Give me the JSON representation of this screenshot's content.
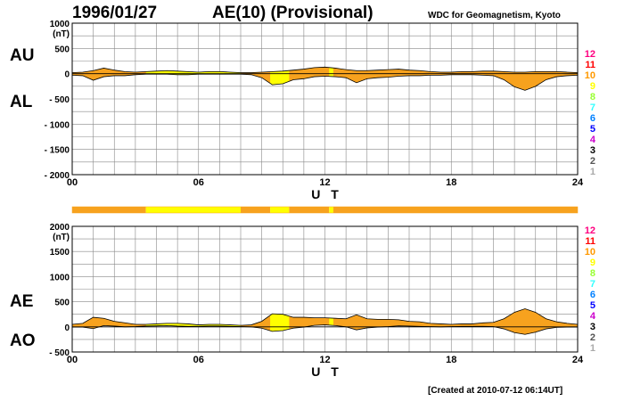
{
  "header": {
    "date": "1996/01/27",
    "title": "AE(10) (Provisional)",
    "source": "WDC for Geomagnetism, Kyoto"
  },
  "footer": {
    "created": "[Created at 2010-07-12 06:14UT]"
  },
  "colors": {
    "normal": "#f7a21e",
    "reduced": "#ffff00",
    "grid": "#888888",
    "line": "#000000"
  },
  "levels": {
    "labels": [
      "12",
      "11",
      "10",
      "9",
      "8",
      "7",
      "6",
      "5",
      "4",
      "3",
      "2",
      "1"
    ],
    "colors": [
      "#ff0080",
      "#ff0000",
      "#ff9900",
      "#ffff00",
      "#99ff33",
      "#33ffff",
      "#0080ff",
      "#0000ff",
      "#cc00cc",
      "#000000",
      "#555555",
      "#aaaaaa"
    ]
  },
  "chart_data": [
    {
      "type": "area",
      "panel": "AU/AL",
      "series_labels": [
        "AU",
        "AL"
      ],
      "ylabel": "(nT)",
      "xlabel": "U T",
      "xlim": [
        0,
        24
      ],
      "ylim": [
        -2000,
        1000
      ],
      "x_ticks": [
        "00",
        "06",
        "12",
        "18",
        "24"
      ],
      "y_ticks": [
        "1000",
        "500",
        "0",
        "- 500",
        "- 1000",
        "- 1500",
        "- 2000"
      ],
      "y_tick_values": [
        1000,
        500,
        0,
        -500,
        -1000,
        -1500,
        -2000
      ],
      "x": [
        0,
        0.5,
        1,
        1.5,
        2,
        2.5,
        3,
        3.5,
        4,
        4.5,
        5,
        5.5,
        6,
        6.5,
        7,
        7.5,
        8,
        8.5,
        9,
        9.5,
        10,
        10.5,
        11,
        11.5,
        12,
        12.5,
        13,
        13.5,
        14,
        14.5,
        15,
        15.5,
        16,
        16.5,
        17,
        17.5,
        18,
        18.5,
        19,
        19.5,
        20,
        20.5,
        21,
        21.5,
        22,
        22.5,
        23,
        23.5,
        24
      ],
      "au": [
        20,
        30,
        60,
        110,
        70,
        40,
        30,
        40,
        50,
        60,
        50,
        40,
        30,
        40,
        40,
        30,
        20,
        20,
        30,
        40,
        50,
        70,
        90,
        120,
        130,
        110,
        80,
        60,
        60,
        70,
        80,
        90,
        70,
        60,
        40,
        30,
        30,
        40,
        40,
        50,
        50,
        40,
        30,
        30,
        40,
        40,
        40,
        30,
        20
      ],
      "al": [
        -30,
        -40,
        -130,
        -60,
        -40,
        -40,
        -20,
        -10,
        -10,
        -10,
        -20,
        -20,
        -10,
        -10,
        -10,
        -10,
        -10,
        -20,
        -80,
        -220,
        -200,
        -120,
        -100,
        -60,
        -50,
        -60,
        -80,
        -180,
        -100,
        -80,
        -70,
        -50,
        -40,
        -40,
        -30,
        -30,
        -20,
        -20,
        -20,
        -30,
        -40,
        -120,
        -260,
        -330,
        -250,
        -120,
        -60,
        -40,
        -30
      ]
    },
    {
      "type": "area",
      "panel": "AE/AO",
      "series_labels": [
        "AE",
        "AO"
      ],
      "ylabel": "(nT)",
      "xlabel": "U T",
      "xlim": [
        0,
        24
      ],
      "ylim": [
        -500,
        2000
      ],
      "x_ticks": [
        "00",
        "06",
        "12",
        "18",
        "24"
      ],
      "y_ticks": [
        "2000",
        "1500",
        "1000",
        "500",
        "0",
        "- 500"
      ],
      "y_tick_values": [
        2000,
        1500,
        1000,
        500,
        0,
        -500
      ],
      "x": [
        0,
        0.5,
        1,
        1.5,
        2,
        2.5,
        3,
        3.5,
        4,
        4.5,
        5,
        5.5,
        6,
        6.5,
        7,
        7.5,
        8,
        8.5,
        9,
        9.5,
        10,
        10.5,
        11,
        11.5,
        12,
        12.5,
        13,
        13.5,
        14,
        14.5,
        15,
        15.5,
        16,
        16.5,
        17,
        17.5,
        18,
        18.5,
        19,
        19.5,
        20,
        20.5,
        21,
        21.5,
        22,
        22.5,
        23,
        23.5,
        24
      ],
      "ae": [
        50,
        70,
        190,
        170,
        110,
        80,
        50,
        50,
        60,
        70,
        70,
        60,
        40,
        50,
        50,
        40,
        30,
        40,
        110,
        260,
        250,
        190,
        190,
        180,
        180,
        170,
        160,
        240,
        160,
        150,
        150,
        140,
        110,
        100,
        70,
        60,
        50,
        60,
        60,
        80,
        90,
        160,
        290,
        360,
        290,
        160,
        100,
        70,
        50
      ],
      "ao": [
        -5,
        -5,
        -35,
        25,
        15,
        0,
        5,
        15,
        20,
        25,
        15,
        10,
        10,
        15,
        15,
        10,
        5,
        0,
        -25,
        -90,
        -75,
        -25,
        -5,
        30,
        40,
        25,
        0,
        -60,
        -20,
        -5,
        5,
        20,
        15,
        10,
        5,
        0,
        5,
        10,
        10,
        10,
        5,
        -40,
        -115,
        -150,
        -105,
        -40,
        -10,
        -5,
        -5
      ]
    }
  ],
  "quality_band": {
    "segments": [
      {
        "from": 0,
        "to": 3.5,
        "level": "normal"
      },
      {
        "from": 3.5,
        "to": 8,
        "level": "reduced"
      },
      {
        "from": 8,
        "to": 9.4,
        "level": "normal"
      },
      {
        "from": 9.4,
        "to": 10.3,
        "level": "reduced"
      },
      {
        "from": 10.3,
        "to": 12.2,
        "level": "normal"
      },
      {
        "from": 12.2,
        "to": 12.4,
        "level": "reduced"
      },
      {
        "from": 12.4,
        "to": 24,
        "level": "normal"
      }
    ]
  }
}
